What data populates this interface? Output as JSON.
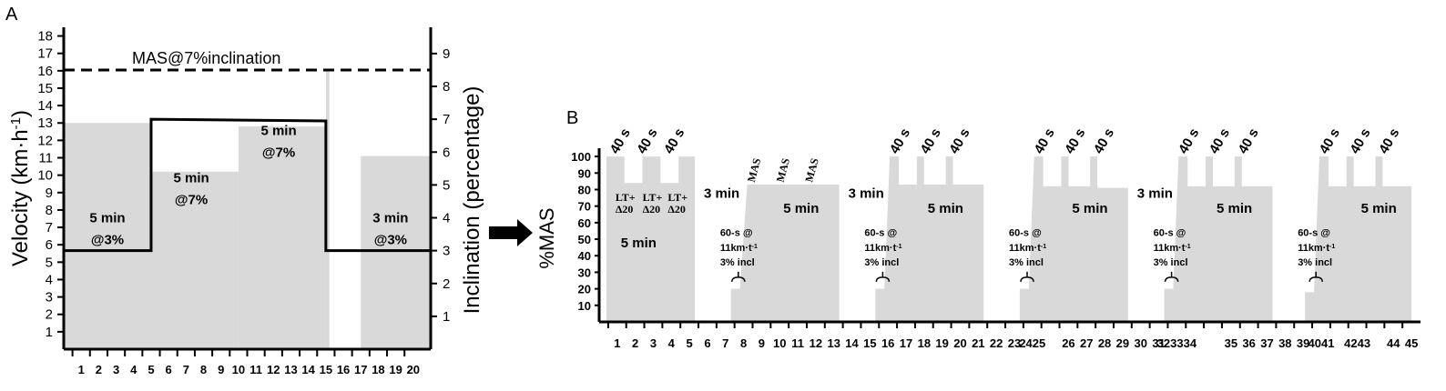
{
  "chart_data": [
    {
      "panel": "A",
      "type": "area",
      "ylabel": "Velocity (km·h",
      "ylabel_sup": "-1",
      "ylabel_end": ")",
      "y2label": "Inclination (percentage)",
      "xticks": [
        1,
        2,
        3,
        4,
        5,
        6,
        7,
        8,
        9,
        10,
        11,
        12,
        13,
        14,
        15,
        16,
        17,
        18,
        19,
        20
      ],
      "yticks": [
        1,
        2,
        3,
        4,
        5,
        6,
        7,
        8,
        9,
        10,
        11,
        12,
        13,
        14,
        15,
        16,
        17,
        18
      ],
      "y2ticks": [
        1,
        2,
        3,
        4,
        5,
        6,
        7,
        8,
        9
      ],
      "xlim": [
        0,
        21
      ],
      "ylim": [
        0,
        18.5
      ],
      "y2lim": [
        0,
        9.8
      ],
      "velocity_blocks": [
        {
          "x0": 0,
          "x1": 5,
          "v": 13
        },
        {
          "x0": 5,
          "x1": 10,
          "v": 10.2
        },
        {
          "x0": 10,
          "x1": 15,
          "v": 12.8
        },
        {
          "x0": 15,
          "x1": 15.2,
          "v": 16
        },
        {
          "x0": 17,
          "x1": 21,
          "v": 11.1
        }
      ],
      "inclination_line": [
        [
          0,
          3
        ],
        [
          5,
          3
        ],
        [
          5,
          7
        ],
        [
          15,
          6.95
        ],
        [
          15,
          3
        ],
        [
          21,
          3
        ]
      ],
      "mas_line_inclination": 8.5,
      "mas_label": "MAS@7%inclination",
      "segment_labels": [
        {
          "line1": "5 min",
          "line2": "@3%",
          "x": 2.5,
          "v": 7.3
        },
        {
          "line1": "5 min",
          "line2": "@7%",
          "x": 7.3,
          "v": 9.6
        },
        {
          "line1": "5 min",
          "line2": "@7%",
          "x": 12.3,
          "v": 12.3
        },
        {
          "line1": "3 min",
          "line2": "@3%",
          "x": 18.7,
          "v": 7.3
        }
      ]
    },
    {
      "panel": "B",
      "type": "area",
      "ylabel": "%MAS",
      "xticks": [
        1,
        2,
        3,
        4,
        5,
        6,
        7,
        8,
        9,
        10,
        11,
        12,
        13,
        14,
        15,
        16,
        17,
        18,
        19,
        20,
        21,
        22,
        23,
        24,
        25,
        26,
        27,
        28,
        29,
        30,
        31,
        32,
        33,
        34,
        35,
        36,
        37,
        38,
        39,
        40,
        41,
        42,
        43,
        44,
        45
      ],
      "xtick_labels": [
        "1",
        "2",
        "3",
        "4",
        "5",
        "6",
        "7",
        "8",
        "9",
        "10",
        "11",
        "12",
        "13",
        "14",
        "15",
        "16",
        "17",
        "18",
        "19",
        "20",
        "21",
        "22",
        "23",
        "2425",
        "",
        "26",
        "27",
        "28",
        "29",
        "30",
        "31",
        "323334",
        "",
        "",
        "35",
        "36",
        "37",
        "38",
        "39",
        "4041",
        "",
        "4243",
        "",
        "44",
        "45"
      ],
      "yticks": [
        10,
        20,
        30,
        40,
        50,
        60,
        70,
        80,
        90,
        100
      ],
      "xlim": [
        0,
        45.5
      ],
      "ylim": [
        0,
        105
      ],
      "sessions": [
        [
          [
            0.4,
            100
          ],
          [
            1.4,
            100
          ],
          [
            1.4,
            84
          ],
          [
            2.4,
            84
          ],
          [
            2.4,
            100
          ],
          [
            3.4,
            100
          ],
          [
            3.4,
            84
          ],
          [
            4.4,
            84
          ],
          [
            4.4,
            100
          ],
          [
            5.3,
            100
          ]
        ],
        [
          [
            7.3,
            20
          ],
          [
            7.8,
            20
          ],
          [
            8.2,
            83
          ],
          [
            13.3,
            83
          ]
        ],
        [
          [
            15.3,
            20
          ],
          [
            15.8,
            20
          ],
          [
            16.1,
            100
          ],
          [
            16.6,
            100
          ],
          [
            16.6,
            83
          ],
          [
            17.6,
            83
          ],
          [
            17.6,
            100
          ],
          [
            18.0,
            100
          ],
          [
            18.0,
            83
          ],
          [
            19.2,
            83
          ],
          [
            19.2,
            100
          ],
          [
            19.6,
            100
          ],
          [
            19.6,
            83
          ],
          [
            21.3,
            83
          ]
        ],
        [
          [
            23.3,
            20
          ],
          [
            23.8,
            20
          ],
          [
            24.1,
            100
          ],
          [
            24.6,
            100
          ],
          [
            24.6,
            82
          ],
          [
            25.6,
            82
          ],
          [
            25.6,
            100
          ],
          [
            26.0,
            100
          ],
          [
            26.0,
            82
          ],
          [
            27.2,
            82
          ],
          [
            27.2,
            100
          ],
          [
            27.6,
            100
          ],
          [
            27.6,
            81
          ],
          [
            29.3,
            81
          ]
        ],
        [
          [
            31.3,
            20
          ],
          [
            31.8,
            20
          ],
          [
            32.1,
            100
          ],
          [
            32.6,
            100
          ],
          [
            32.6,
            82
          ],
          [
            33.6,
            82
          ],
          [
            33.6,
            100
          ],
          [
            34.0,
            100
          ],
          [
            34.0,
            82
          ],
          [
            35.2,
            82
          ],
          [
            35.2,
            100
          ],
          [
            35.6,
            100
          ],
          [
            35.6,
            82
          ],
          [
            37.3,
            82
          ]
        ],
        [
          [
            39.1,
            18
          ],
          [
            39.6,
            18
          ],
          [
            39.9,
            100
          ],
          [
            40.4,
            100
          ],
          [
            40.4,
            82
          ],
          [
            41.4,
            82
          ],
          [
            41.4,
            100
          ],
          [
            41.8,
            100
          ],
          [
            41.8,
            82
          ],
          [
            43.0,
            82
          ],
          [
            43.0,
            100
          ],
          [
            43.4,
            100
          ],
          [
            43.4,
            82
          ],
          [
            45.0,
            82
          ]
        ]
      ],
      "labels": {
        "forty_s": "40 s",
        "mas": "MAS",
        "lt": "LT+",
        "delta": "Δ20",
        "three_min": "3 min",
        "five_min": "5 min",
        "sixty": "60-s @",
        "speed": "11km·t",
        "speed_sup": "-1",
        "incl": "3% incl"
      },
      "forty_s_x": [
        1.0,
        2.5,
        4.0,
        16.5,
        18.2,
        19.8,
        24.5,
        26.2,
        27.8,
        32.5,
        34.2,
        35.8,
        40.3,
        42.0,
        43.6
      ],
      "mas_x": [
        8.6,
        10.2,
        11.8
      ],
      "lt_x": [
        0.9,
        2.4,
        3.8
      ],
      "three_min_x": [
        5.8,
        13.8,
        29.8
      ],
      "five_min_x": [
        1.2,
        10.2,
        18.2,
        26.2,
        34.2,
        42.2
      ],
      "sixty_x": [
        6.7,
        14.7,
        22.7,
        30.7,
        38.7
      ]
    }
  ],
  "panel_labels": {
    "a": "A",
    "b": "B"
  }
}
